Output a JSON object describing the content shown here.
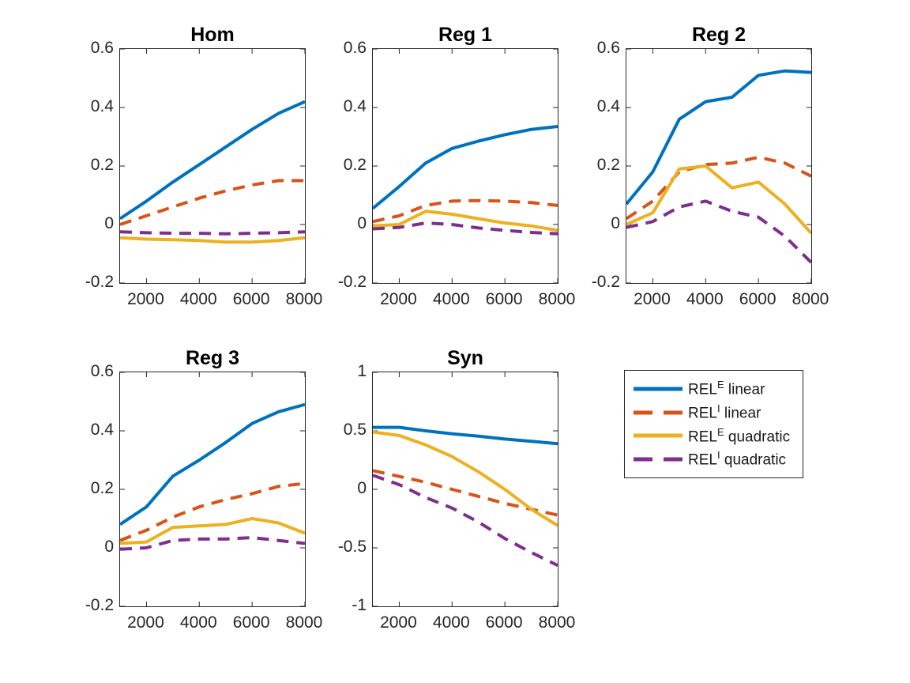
{
  "figure": {
    "background": "#ffffff",
    "axis_color": "#262626",
    "title_color": "#000000"
  },
  "legend": {
    "entries": [
      {
        "base": "REL",
        "sup": "E",
        "rest": " linear",
        "color": "#0072BD",
        "style": "solid"
      },
      {
        "base": "REL",
        "sup": "I",
        "rest": " linear",
        "color": "#D95319",
        "style": "dashed"
      },
      {
        "base": "REL",
        "sup": "E",
        "rest": " quadratic",
        "color": "#EDB120",
        "style": "solid"
      },
      {
        "base": "REL",
        "sup": "I",
        "rest": " quadratic",
        "color": "#7E2F8E",
        "style": "dashed"
      }
    ]
  },
  "chart_data": [
    {
      "type": "line",
      "title": "Hom",
      "x": [
        1000,
        2000,
        3000,
        4000,
        5000,
        6000,
        7000,
        8000
      ],
      "xlim": [
        1000,
        8000
      ],
      "ylim": [
        -0.2,
        0.6
      ],
      "xticks": [
        2000,
        4000,
        6000,
        8000
      ],
      "xtick_labels": [
        "2000",
        "4000",
        "6000",
        "8000"
      ],
      "yticks": [
        -0.2,
        0,
        0.2,
        0.4,
        0.6
      ],
      "ytick_labels": [
        "-0.2",
        "0",
        "0.2",
        "0.4",
        "0.6"
      ],
      "grid": false,
      "series": [
        {
          "name": "REL^E linear",
          "color": "#0072BD",
          "style": "solid",
          "values": [
            0.02,
            0.08,
            0.145,
            0.205,
            0.265,
            0.325,
            0.38,
            0.42
          ]
        },
        {
          "name": "REL^I linear",
          "color": "#D95319",
          "style": "dashed",
          "values": [
            0.0,
            0.03,
            0.06,
            0.09,
            0.115,
            0.135,
            0.15,
            0.15
          ]
        },
        {
          "name": "REL^E quadratic",
          "color": "#EDB120",
          "style": "solid",
          "values": [
            -0.045,
            -0.05,
            -0.052,
            -0.055,
            -0.06,
            -0.06,
            -0.055,
            -0.045
          ]
        },
        {
          "name": "REL^I quadratic",
          "color": "#7E2F8E",
          "style": "dashed",
          "values": [
            -0.025,
            -0.028,
            -0.03,
            -0.03,
            -0.032,
            -0.03,
            -0.028,
            -0.025
          ]
        }
      ]
    },
    {
      "type": "line",
      "title": "Reg 1",
      "x": [
        1000,
        2000,
        3000,
        4000,
        5000,
        6000,
        7000,
        8000
      ],
      "xlim": [
        1000,
        8000
      ],
      "ylim": [
        -0.2,
        0.6
      ],
      "xticks": [
        2000,
        4000,
        6000,
        8000
      ],
      "xtick_labels": [
        "2000",
        "4000",
        "6000",
        "8000"
      ],
      "yticks": [
        -0.2,
        0,
        0.2,
        0.4,
        0.6
      ],
      "ytick_labels": [
        "-0.2",
        "0",
        "0.2",
        "0.4",
        "0.6"
      ],
      "grid": false,
      "series": [
        {
          "name": "REL^E linear",
          "color": "#0072BD",
          "style": "solid",
          "values": [
            0.055,
            0.13,
            0.21,
            0.26,
            0.285,
            0.307,
            0.325,
            0.335
          ]
        },
        {
          "name": "REL^I linear",
          "color": "#D95319",
          "style": "dashed",
          "values": [
            0.01,
            0.03,
            0.065,
            0.08,
            0.082,
            0.08,
            0.075,
            0.065
          ]
        },
        {
          "name": "REL^E quadratic",
          "color": "#EDB120",
          "style": "solid",
          "values": [
            -0.005,
            0.0,
            0.045,
            0.035,
            0.02,
            0.005,
            -0.005,
            -0.02
          ]
        },
        {
          "name": "REL^I quadratic",
          "color": "#7E2F8E",
          "style": "dashed",
          "values": [
            -0.015,
            -0.01,
            0.005,
            0.0,
            -0.012,
            -0.02,
            -0.027,
            -0.032
          ]
        }
      ]
    },
    {
      "type": "line",
      "title": "Reg 2",
      "x": [
        1000,
        2000,
        3000,
        4000,
        5000,
        6000,
        7000,
        8000
      ],
      "xlim": [
        1000,
        8000
      ],
      "ylim": [
        -0.2,
        0.6
      ],
      "xticks": [
        2000,
        4000,
        6000,
        8000
      ],
      "xtick_labels": [
        "2000",
        "4000",
        "6000",
        "8000"
      ],
      "yticks": [
        -0.2,
        0,
        0.2,
        0.4,
        0.6
      ],
      "ytick_labels": [
        "-0.2",
        "0",
        "0.2",
        "0.4",
        "0.6"
      ],
      "grid": false,
      "series": [
        {
          "name": "REL^E linear",
          "color": "#0072BD",
          "style": "solid",
          "values": [
            0.07,
            0.18,
            0.36,
            0.42,
            0.435,
            0.51,
            0.525,
            0.52
          ]
        },
        {
          "name": "REL^I linear",
          "color": "#D95319",
          "style": "dashed",
          "values": [
            0.02,
            0.08,
            0.18,
            0.205,
            0.21,
            0.23,
            0.21,
            0.165
          ]
        },
        {
          "name": "REL^E quadratic",
          "color": "#EDB120",
          "style": "solid",
          "values": [
            0.0,
            0.04,
            0.19,
            0.2,
            0.125,
            0.145,
            0.07,
            -0.03
          ]
        },
        {
          "name": "REL^I quadratic",
          "color": "#7E2F8E",
          "style": "dashed",
          "values": [
            -0.01,
            0.01,
            0.06,
            0.08,
            0.045,
            0.025,
            -0.04,
            -0.13
          ]
        }
      ]
    },
    {
      "type": "line",
      "title": "Reg 3",
      "x": [
        1000,
        2000,
        3000,
        4000,
        5000,
        6000,
        7000,
        8000
      ],
      "xlim": [
        1000,
        8000
      ],
      "ylim": [
        -0.2,
        0.6
      ],
      "xticks": [
        2000,
        4000,
        6000,
        8000
      ],
      "xtick_labels": [
        "2000",
        "4000",
        "6000",
        "8000"
      ],
      "yticks": [
        -0.2,
        0,
        0.2,
        0.4,
        0.6
      ],
      "ytick_labels": [
        "-0.2",
        "0",
        "0.2",
        "0.4",
        "0.6"
      ],
      "grid": false,
      "series": [
        {
          "name": "REL^E linear",
          "color": "#0072BD",
          "style": "solid",
          "values": [
            0.08,
            0.14,
            0.245,
            0.3,
            0.36,
            0.425,
            0.465,
            0.49
          ]
        },
        {
          "name": "REL^I linear",
          "color": "#D95319",
          "style": "dashed",
          "values": [
            0.025,
            0.06,
            0.105,
            0.14,
            0.165,
            0.185,
            0.21,
            0.22
          ]
        },
        {
          "name": "REL^E quadratic",
          "color": "#EDB120",
          "style": "solid",
          "values": [
            0.015,
            0.02,
            0.07,
            0.075,
            0.08,
            0.1,
            0.085,
            0.05
          ]
        },
        {
          "name": "REL^I quadratic",
          "color": "#7E2F8E",
          "style": "dashed",
          "values": [
            -0.005,
            0.0,
            0.025,
            0.03,
            0.03,
            0.035,
            0.025,
            0.015
          ]
        }
      ]
    },
    {
      "type": "line",
      "title": "Syn",
      "x": [
        1000,
        2000,
        3000,
        4000,
        5000,
        6000,
        7000,
        8000
      ],
      "xlim": [
        1000,
        8000
      ],
      "ylim": [
        -1,
        1
      ],
      "xticks": [
        2000,
        4000,
        6000,
        8000
      ],
      "xtick_labels": [
        "2000",
        "4000",
        "6000",
        "8000"
      ],
      "yticks": [
        -1,
        -0.5,
        0,
        0.5,
        1
      ],
      "ytick_labels": [
        "-1",
        "-0.5",
        "0",
        "0.5",
        "1"
      ],
      "grid": false,
      "series": [
        {
          "name": "REL^E linear",
          "color": "#0072BD",
          "style": "solid",
          "values": [
            0.53,
            0.53,
            0.5,
            0.475,
            0.455,
            0.43,
            0.41,
            0.39
          ]
        },
        {
          "name": "REL^I linear",
          "color": "#D95319",
          "style": "dashed",
          "values": [
            0.16,
            0.11,
            0.06,
            0.0,
            -0.06,
            -0.12,
            -0.17,
            -0.22
          ]
        },
        {
          "name": "REL^E quadratic",
          "color": "#EDB120",
          "style": "solid",
          "values": [
            0.49,
            0.46,
            0.38,
            0.28,
            0.15,
            0.0,
            -0.17,
            -0.31
          ]
        },
        {
          "name": "REL^I quadratic",
          "color": "#7E2F8E",
          "style": "dashed",
          "values": [
            0.12,
            0.04,
            -0.07,
            -0.16,
            -0.28,
            -0.42,
            -0.54,
            -0.65
          ]
        }
      ]
    }
  ]
}
